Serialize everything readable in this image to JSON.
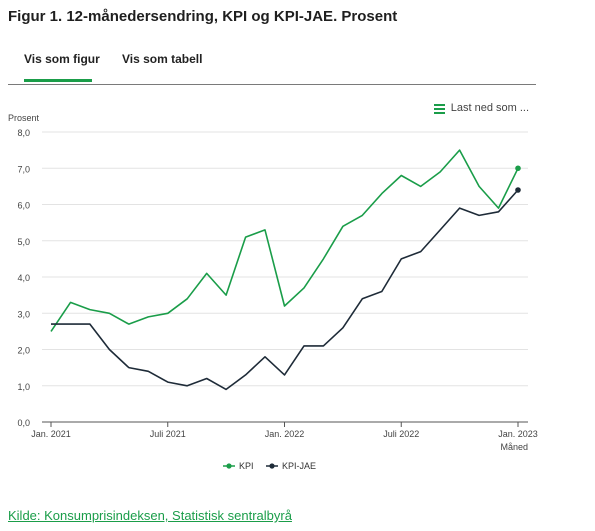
{
  "figure": {
    "title": "Figur 1. 12-månedersendring, KPI og KPI-JAE. Prosent"
  },
  "tabs": [
    {
      "label": "Vis som figur",
      "active": true
    },
    {
      "label": "Vis som tabell",
      "active": false
    }
  ],
  "download": {
    "label": "Last ned som ...",
    "icon": "menu-icon"
  },
  "source": {
    "label": "Kilde: Konsumprisindeksen, Statistisk sentralbyrå"
  },
  "colors": {
    "kpi": "#1a9d49",
    "kpi_jae": "#1e2b38",
    "accent": "#1a9d49"
  },
  "chart_data": {
    "type": "line",
    "ylabel": "Prosent",
    "xlabel": "Måned",
    "ylim": [
      0,
      8
    ],
    "yticks": [
      "0,0",
      "1,0",
      "2,0",
      "3,0",
      "4,0",
      "5,0",
      "6,0",
      "7,0",
      "8,0"
    ],
    "xticks": [
      {
        "index": 0,
        "label": "Jan. 2021"
      },
      {
        "index": 6,
        "label": "Juli 2021"
      },
      {
        "index": 12,
        "label": "Jan. 2022"
      },
      {
        "index": 18,
        "label": "Juli 2022"
      },
      {
        "index": 24,
        "label": "Jan. 2023"
      }
    ],
    "x": [
      "2021-01",
      "2021-02",
      "2021-03",
      "2021-04",
      "2021-05",
      "2021-06",
      "2021-07",
      "2021-08",
      "2021-09",
      "2021-10",
      "2021-11",
      "2021-12",
      "2022-01",
      "2022-02",
      "2022-03",
      "2022-04",
      "2022-05",
      "2022-06",
      "2022-07",
      "2022-08",
      "2022-09",
      "2022-10",
      "2022-11",
      "2022-12",
      "2023-01"
    ],
    "series": [
      {
        "name": "KPI",
        "values": [
          2.5,
          3.3,
          3.1,
          3.0,
          2.7,
          2.9,
          3.0,
          3.4,
          4.1,
          3.5,
          5.1,
          5.3,
          3.2,
          3.7,
          4.5,
          5.4,
          5.7,
          6.3,
          6.8,
          6.5,
          6.9,
          7.5,
          6.5,
          5.9,
          7.0
        ]
      },
      {
        "name": "KPI-JAE",
        "values": [
          2.7,
          2.7,
          2.7,
          2.0,
          1.5,
          1.4,
          1.1,
          1.0,
          1.2,
          0.9,
          1.3,
          1.8,
          1.3,
          2.1,
          2.1,
          2.6,
          3.4,
          3.6,
          4.5,
          4.7,
          5.3,
          5.9,
          5.7,
          5.8,
          6.4
        ]
      }
    ],
    "grid": true,
    "legend_position": "bottom"
  }
}
